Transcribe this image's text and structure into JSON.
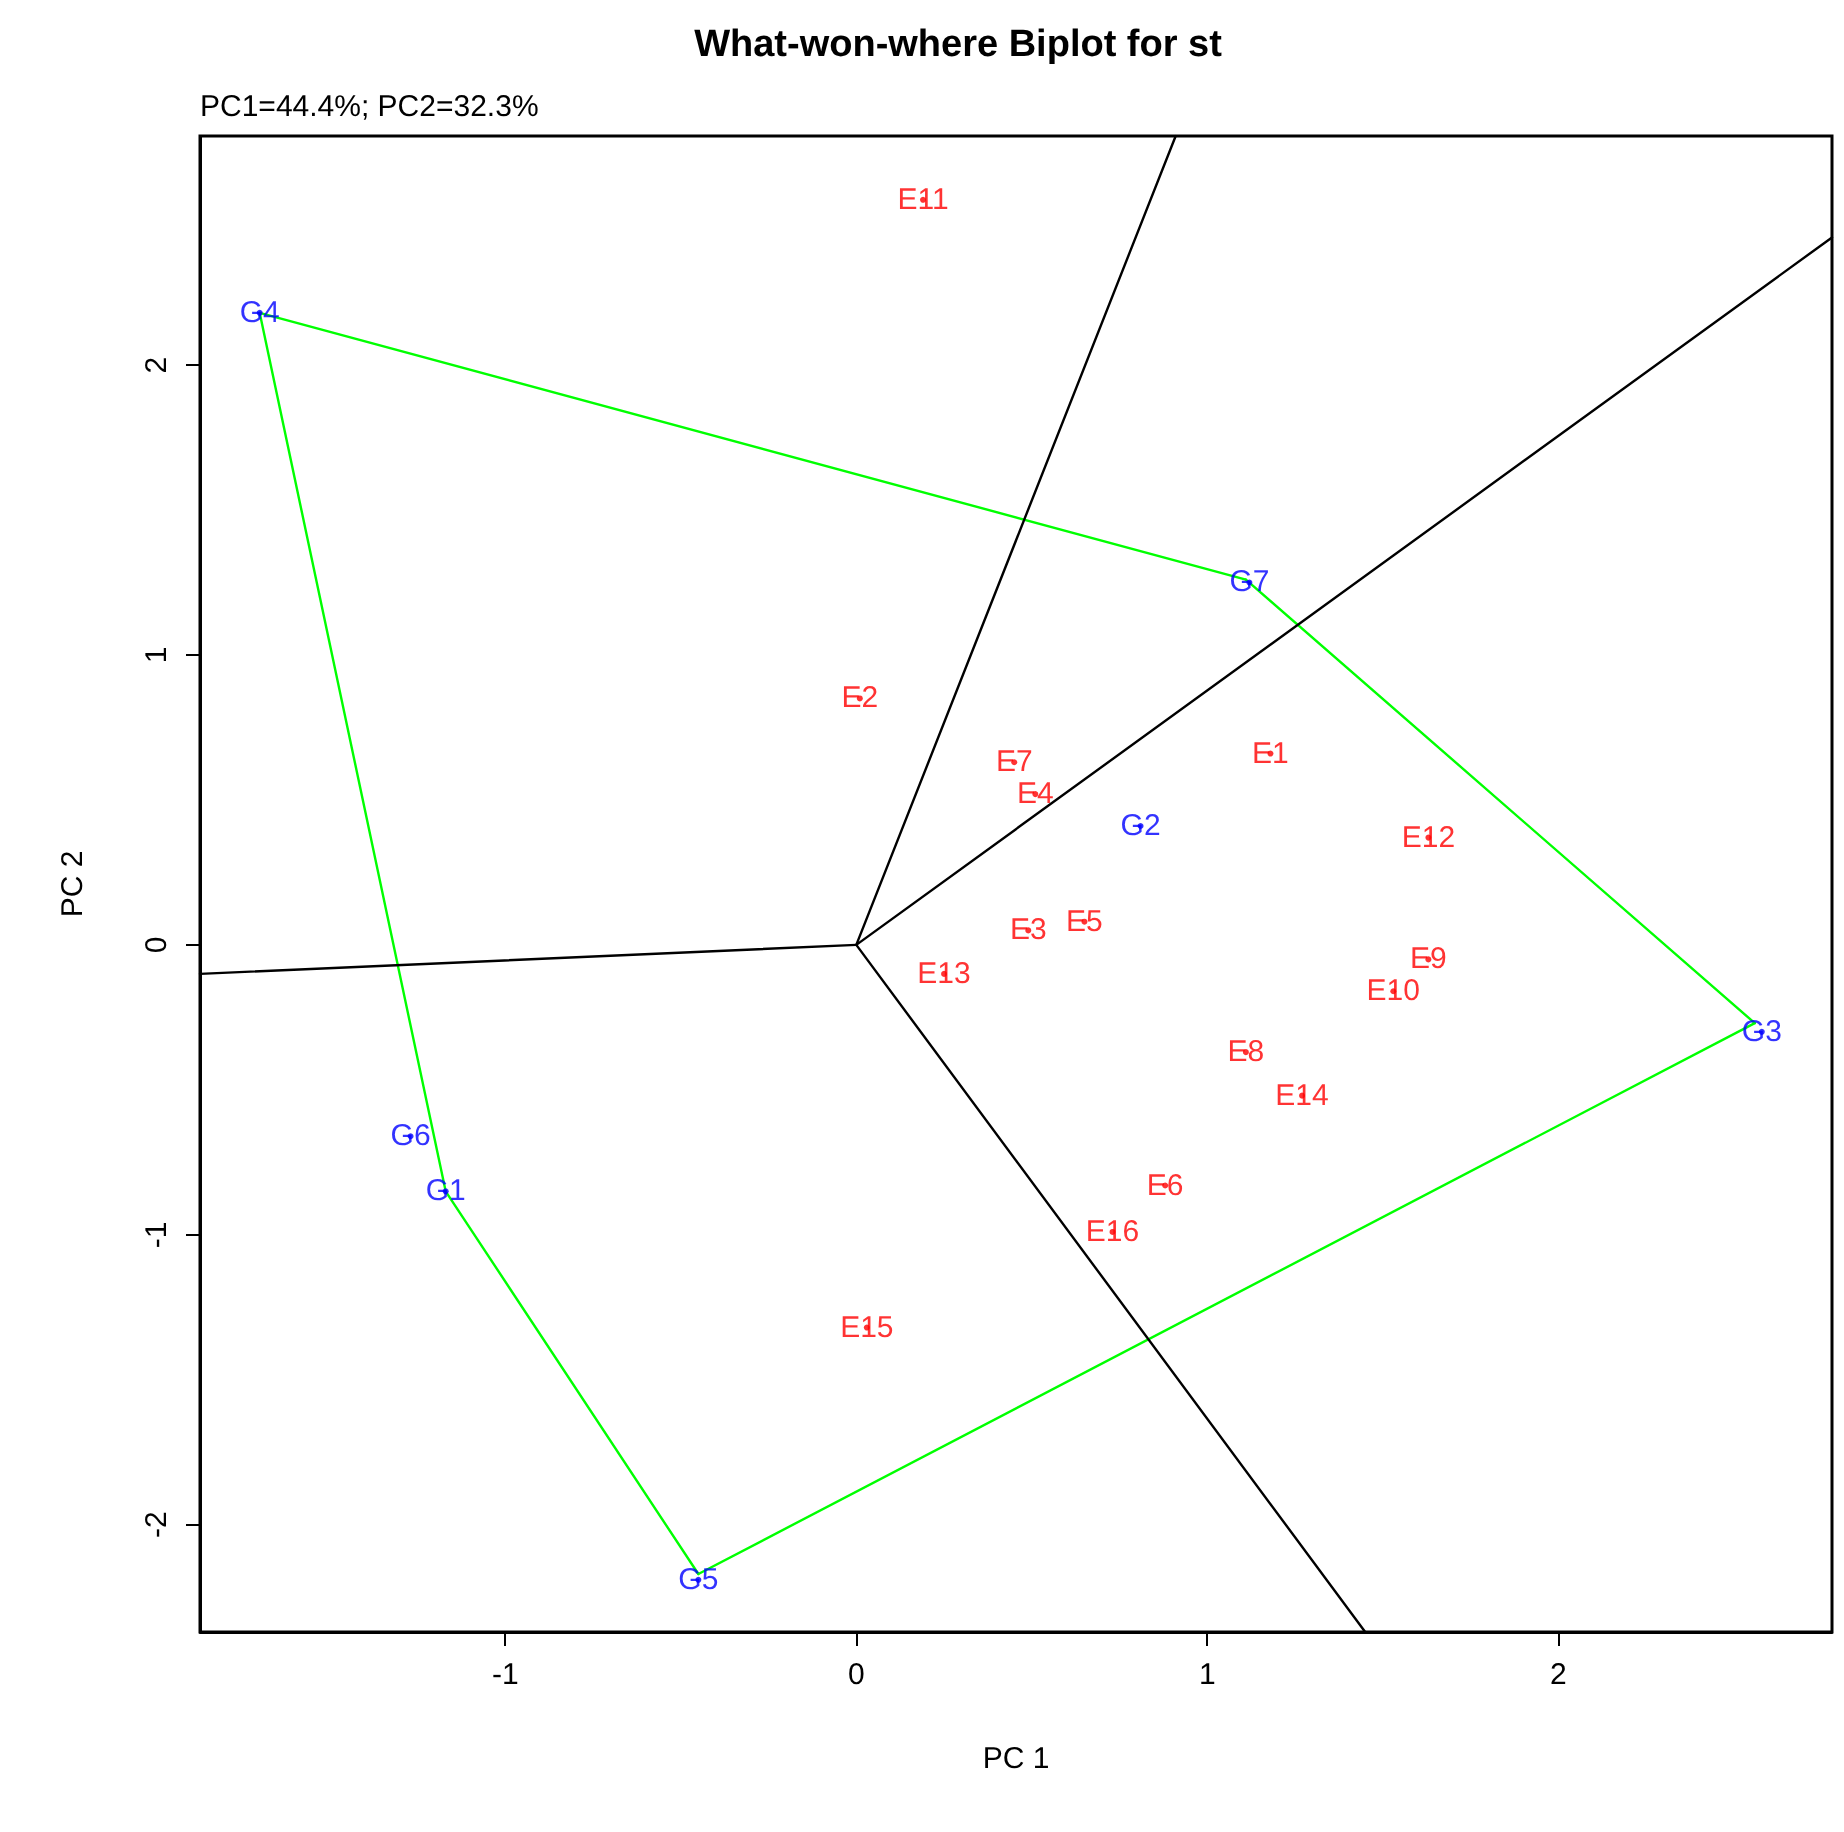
{
  "chart_data": {
    "type": "scatter",
    "title": "What-won-where Biplot for st",
    "xlabel": "PC 1",
    "ylabel": "PC 2",
    "annotations": [
      "PC1=44.4%; PC2=32.3%"
    ],
    "xlim": [
      -1.87,
      2.78
    ],
    "ylim": [
      -2.37,
      2.79
    ],
    "xticks": [
      -1,
      0,
      1,
      2
    ],
    "yticks": [
      -2,
      -1,
      0,
      1,
      2
    ],
    "marker": "none",
    "series": [
      {
        "type": "line",
        "color": "#00ff00",
        "x": [
          -1.7,
          1.11
        ],
        "values": [
          2.18,
          1.26
        ]
      },
      {
        "type": "line",
        "color": "#00ff00",
        "x": [
          1.11,
          2.56
        ],
        "values": [
          1.26,
          -0.27
        ]
      },
      {
        "type": "line",
        "color": "#00ff00",
        "x": [
          -0.45,
          2.56
        ],
        "values": [
          -2.17,
          -0.27
        ]
      },
      {
        "type": "line",
        "color": "#00ff00",
        "x": [
          -1.17,
          -0.45
        ],
        "values": [
          -0.85,
          -2.17
        ]
      },
      {
        "type": "line",
        "color": "#00ff00",
        "x": [
          -1.7,
          -1.17
        ],
        "values": [
          2.18,
          -0.85
        ]
      },
      {
        "type": "line",
        "color": "#000000",
        "x": [
          0,
          0.91
        ],
        "values": [
          0,
          2.79
        ]
      },
      {
        "type": "line",
        "color": "#000000",
        "x": [
          0,
          2.78
        ],
        "values": [
          0,
          2.44
        ]
      },
      {
        "type": "line",
        "color": "#000000",
        "x": [
          0,
          1.45
        ],
        "values": [
          0,
          -2.37
        ]
      },
      {
        "type": "line",
        "color": "#000000",
        "x": [
          0,
          -1.87
        ],
        "values": [
          0,
          -0.1
        ]
      },
      {
        "type": "scatter",
        "marker": "circle",
        "color": "#0000ff",
        "x": [
          -1.7,
          1.12,
          2.58,
          -0.45,
          -1.17,
          -1.27,
          0.81
        ],
        "values": [
          2.18,
          1.25,
          -0.3,
          -2.19,
          -0.85,
          -0.66,
          0.41
        ],
        "value_labels": [
          "G4",
          "G7",
          "G3",
          "G5",
          "G1",
          "G6",
          "G2"
        ]
      },
      {
        "type": "scatter",
        "marker": "circle",
        "color": "#ff0000",
        "x": [
          0.19,
          0.01,
          0.45,
          0.51,
          1.18,
          1.63,
          0.49,
          0.65,
          0.25,
          1.63,
          1.53,
          1.11,
          1.27,
          0.88,
          0.73,
          0.03
        ],
        "values": [
          2.57,
          0.85,
          0.63,
          0.52,
          0.66,
          0.37,
          0.05,
          0.08,
          -0.1,
          -0.05,
          -0.16,
          -0.37,
          -0.52,
          -0.83,
          -0.99,
          -1.32
        ],
        "value_labels": [
          "E11",
          "E2",
          "E7",
          "E4",
          "E1",
          "E12",
          "E3",
          "E5",
          "E13",
          "E9",
          "E10",
          "E8",
          "E14",
          "E6",
          "E16",
          "E15"
        ]
      }
    ]
  }
}
